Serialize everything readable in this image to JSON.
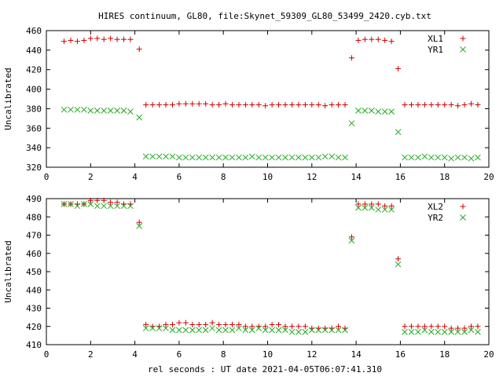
{
  "title": "HIRES continuum, GL80, file:Skynet_59309_GL80_53499_2420.cyb.txt",
  "xlabel": "rel seconds : UT date 2021-04-05T06:07:41.310",
  "colors": {
    "xl": "#cc0000",
    "yr": "#22aa22",
    "axis": "#000000"
  },
  "chart_data": [
    {
      "type": "scatter",
      "ylabel": "Uncalibrated",
      "xlim": [
        0,
        20
      ],
      "ylim": [
        320,
        460
      ],
      "xticks": [
        0,
        2,
        4,
        6,
        8,
        10,
        12,
        14,
        16,
        18,
        20
      ],
      "yticks": [
        320,
        340,
        360,
        380,
        400,
        420,
        440,
        460
      ],
      "legend_position": "top-right",
      "series": [
        {
          "name": "XL1",
          "marker": "plus",
          "color": "#cc0000",
          "x": [
            0.8,
            1.1,
            1.4,
            1.7,
            2.0,
            2.3,
            2.6,
            2.9,
            3.2,
            3.5,
            3.8,
            4.2,
            4.5,
            4.8,
            5.1,
            5.4,
            5.7,
            6.0,
            6.3,
            6.6,
            6.9,
            7.2,
            7.5,
            7.8,
            8.1,
            8.4,
            8.7,
            9.0,
            9.3,
            9.6,
            9.9,
            10.2,
            10.5,
            10.8,
            11.1,
            11.4,
            11.7,
            12.0,
            12.3,
            12.6,
            12.9,
            13.2,
            13.5,
            13.8,
            14.1,
            14.4,
            14.7,
            15.0,
            15.3,
            15.6,
            15.9,
            16.2,
            16.5,
            16.8,
            17.1,
            17.4,
            17.7,
            18.0,
            18.3,
            18.6,
            18.9,
            19.2,
            19.5
          ],
          "y": [
            449,
            450,
            449,
            450,
            452,
            452,
            451,
            452,
            451,
            451,
            451,
            441,
            384,
            384,
            384,
            384,
            384,
            385,
            385,
            385,
            385,
            385,
            384,
            384,
            385,
            384,
            384,
            384,
            384,
            384,
            383,
            384,
            384,
            384,
            384,
            384,
            384,
            384,
            384,
            383,
            384,
            384,
            384,
            432,
            450,
            451,
            451,
            451,
            450,
            449,
            421,
            384,
            384,
            384,
            384,
            384,
            384,
            384,
            384,
            383,
            384,
            385,
            384
          ]
        },
        {
          "name": "YR1",
          "marker": "cross",
          "color": "#22aa22",
          "x": [
            0.8,
            1.1,
            1.4,
            1.7,
            2.0,
            2.3,
            2.6,
            2.9,
            3.2,
            3.5,
            3.8,
            4.2,
            4.5,
            4.8,
            5.1,
            5.4,
            5.7,
            6.0,
            6.3,
            6.6,
            6.9,
            7.2,
            7.5,
            7.8,
            8.1,
            8.4,
            8.7,
            9.0,
            9.3,
            9.6,
            9.9,
            10.2,
            10.5,
            10.8,
            11.1,
            11.4,
            11.7,
            12.0,
            12.3,
            12.6,
            12.9,
            13.2,
            13.5,
            13.8,
            14.1,
            14.4,
            14.7,
            15.0,
            15.3,
            15.6,
            15.9,
            16.2,
            16.5,
            16.8,
            17.1,
            17.4,
            17.7,
            18.0,
            18.3,
            18.6,
            18.9,
            19.2,
            19.5
          ],
          "y": [
            379,
            379,
            379,
            379,
            378,
            378,
            378,
            378,
            378,
            378,
            377,
            371,
            331,
            331,
            331,
            331,
            331,
            330,
            330,
            330,
            330,
            330,
            330,
            330,
            330,
            330,
            330,
            330,
            331,
            330,
            330,
            330,
            330,
            330,
            330,
            330,
            330,
            330,
            330,
            331,
            331,
            330,
            330,
            365,
            378,
            378,
            378,
            377,
            377,
            377,
            356,
            330,
            330,
            330,
            331,
            330,
            330,
            330,
            329,
            330,
            330,
            329,
            330
          ]
        }
      ]
    },
    {
      "type": "scatter",
      "ylabel": "Uncalibrated",
      "xlim": [
        0,
        20
      ],
      "ylim": [
        410,
        490
      ],
      "xticks": [
        0,
        2,
        4,
        6,
        8,
        10,
        12,
        14,
        16,
        18,
        20
      ],
      "yticks": [
        410,
        420,
        430,
        440,
        450,
        460,
        470,
        480,
        490
      ],
      "legend_position": "top-right",
      "series": [
        {
          "name": "XL2",
          "marker": "plus",
          "color": "#cc0000",
          "x": [
            0.8,
            1.1,
            1.4,
            1.7,
            2.0,
            2.3,
            2.6,
            2.9,
            3.2,
            3.5,
            3.8,
            4.2,
            4.5,
            4.8,
            5.1,
            5.4,
            5.7,
            6.0,
            6.3,
            6.6,
            6.9,
            7.2,
            7.5,
            7.8,
            8.1,
            8.4,
            8.7,
            9.0,
            9.3,
            9.6,
            9.9,
            10.2,
            10.5,
            10.8,
            11.1,
            11.4,
            11.7,
            12.0,
            12.3,
            12.6,
            12.9,
            13.2,
            13.5,
            13.8,
            14.1,
            14.4,
            14.7,
            15.0,
            15.3,
            15.6,
            15.9,
            16.2,
            16.5,
            16.8,
            17.1,
            17.4,
            17.7,
            18.0,
            18.3,
            18.6,
            18.9,
            19.2,
            19.5
          ],
          "y": [
            487,
            487,
            487,
            487,
            489,
            489,
            489,
            488,
            488,
            487,
            487,
            477,
            421,
            420,
            420,
            421,
            421,
            422,
            422,
            421,
            421,
            421,
            422,
            421,
            421,
            421,
            421,
            420,
            420,
            420,
            420,
            421,
            421,
            420,
            420,
            420,
            420,
            419,
            419,
            419,
            419,
            420,
            419,
            469,
            487,
            487,
            487,
            487,
            486,
            486,
            457,
            420,
            420,
            420,
            420,
            420,
            420,
            420,
            419,
            419,
            419,
            420,
            420
          ]
        },
        {
          "name": "YR2",
          "marker": "cross",
          "color": "#22aa22",
          "x": [
            0.8,
            1.1,
            1.4,
            1.7,
            2.0,
            2.3,
            2.6,
            2.9,
            3.2,
            3.5,
            3.8,
            4.2,
            4.5,
            4.8,
            5.1,
            5.4,
            5.7,
            6.0,
            6.3,
            6.6,
            6.9,
            7.2,
            7.5,
            7.8,
            8.1,
            8.4,
            8.7,
            9.0,
            9.3,
            9.6,
            9.9,
            10.2,
            10.5,
            10.8,
            11.1,
            11.4,
            11.7,
            12.0,
            12.3,
            12.6,
            12.9,
            13.2,
            13.5,
            13.8,
            14.1,
            14.4,
            14.7,
            15.0,
            15.3,
            15.6,
            15.9,
            16.2,
            16.5,
            16.8,
            17.1,
            17.4,
            17.7,
            18.0,
            18.3,
            18.6,
            18.9,
            19.2,
            19.5
          ],
          "y": [
            487,
            487,
            486,
            487,
            487,
            486,
            486,
            486,
            486,
            486,
            486,
            475,
            419,
            419,
            419,
            419,
            418,
            418,
            418,
            418,
            418,
            418,
            419,
            418,
            418,
            418,
            419,
            418,
            418,
            419,
            418,
            418,
            418,
            418,
            417,
            417,
            417,
            418,
            418,
            418,
            418,
            418,
            418,
            467,
            485,
            485,
            485,
            484,
            484,
            484,
            454,
            417,
            417,
            417,
            418,
            417,
            417,
            417,
            417,
            417,
            417,
            418,
            417
          ]
        }
      ]
    }
  ]
}
